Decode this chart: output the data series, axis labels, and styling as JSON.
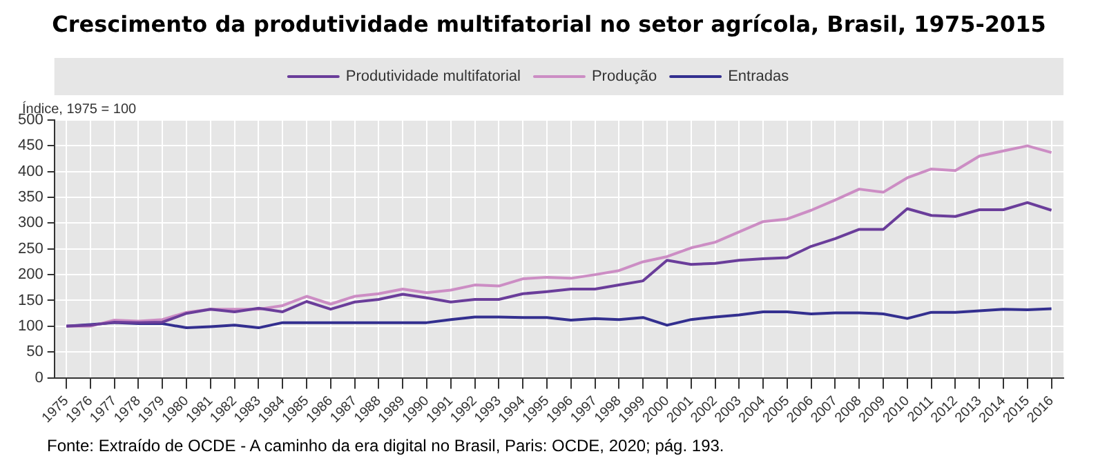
{
  "chart_data": {
    "type": "line",
    "title": "Crescimento da produtividade multifatorial no setor agrícola, Brasil, 1975-2015",
    "ylabel": "Índice, 1975 = 100",
    "categories": [
      "1975",
      "1976",
      "1977",
      "1978",
      "1979",
      "1980",
      "1981",
      "1982",
      "1983",
      "1984",
      "1985",
      "1986",
      "1987",
      "1988",
      "1989",
      "1990",
      "1991",
      "1992",
      "1993",
      "1994",
      "1995",
      "1996",
      "1997",
      "1998",
      "1999",
      "2000",
      "2001",
      "2002",
      "2003",
      "2004",
      "2005",
      "2006",
      "2007",
      "2008",
      "2009",
      "2010",
      "2011",
      "2012",
      "2013",
      "2014",
      "2015",
      "2016"
    ],
    "series": [
      {
        "name": "Produtividade multifatorial",
        "color": "#6a3d9a",
        "values": [
          100,
          102,
          108,
          107,
          108,
          125,
          133,
          128,
          135,
          128,
          148,
          133,
          147,
          152,
          162,
          155,
          147,
          152,
          152,
          163,
          167,
          172,
          172,
          180,
          188,
          228,
          220,
          222,
          228,
          231,
          233,
          255,
          270,
          288,
          288,
          328,
          315,
          313,
          326,
          326,
          340,
          325
        ]
      },
      {
        "name": "Produção",
        "color": "#cc8dc4",
        "values": [
          100,
          100,
          112,
          110,
          113,
          127,
          133,
          133,
          133,
          140,
          158,
          143,
          158,
          163,
          172,
          165,
          170,
          180,
          178,
          192,
          195,
          193,
          200,
          208,
          225,
          235,
          252,
          263,
          283,
          303,
          308,
          325,
          345,
          366,
          360,
          388,
          405,
          402,
          430,
          440,
          450,
          437
        ]
      },
      {
        "name": "Entradas",
        "color": "#332f8f",
        "values": [
          100,
          103,
          107,
          105,
          105,
          97,
          99,
          102,
          97,
          107,
          107,
          107,
          107,
          107,
          107,
          107,
          113,
          118,
          118,
          117,
          117,
          112,
          115,
          113,
          117,
          102,
          113,
          118,
          122,
          128,
          128,
          124,
          126,
          126,
          124,
          115,
          127,
          127,
          130,
          133,
          132,
          134
        ]
      }
    ],
    "ylim": [
      0,
      500
    ],
    "yticks": [
      0,
      50,
      100,
      150,
      200,
      250,
      300,
      350,
      400,
      450,
      500
    ],
    "grid": true,
    "legend": "top",
    "marker": "none",
    "line_style": "solid",
    "annotations": [
      "Fonte: Extraído de OCDE - A caminho da era digital no Brasil, Paris: OCDE, 2020; pág. 193."
    ]
  }
}
